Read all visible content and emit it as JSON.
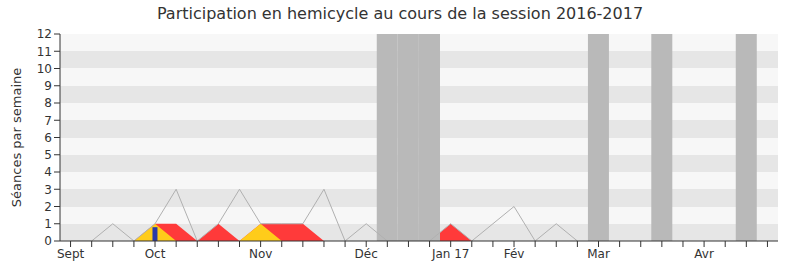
{
  "chart_data": {
    "type": "line",
    "title": "Participation en hemicycle au cours de la session 2016-2017",
    "ylabel": "Séances par semaine",
    "categories": [
      "Sept",
      null,
      null,
      null,
      "Oct",
      null,
      null,
      null,
      null,
      "Nov",
      null,
      null,
      null,
      null,
      "Déc",
      null,
      null,
      null,
      "Jan 17",
      null,
      null,
      "Fév",
      null,
      null,
      null,
      "Mar",
      null,
      null,
      null,
      null,
      "Avr",
      null,
      null,
      null
    ],
    "series": [
      {
        "type": "bar",
        "color": "#b9b9b9",
        "values": [
          null,
          null,
          null,
          null,
          null,
          null,
          null,
          null,
          null,
          null,
          null,
          null,
          null,
          null,
          null,
          12,
          12,
          12,
          null,
          null,
          null,
          null,
          null,
          null,
          null,
          12,
          null,
          null,
          12,
          null,
          null,
          null,
          12,
          null
        ]
      },
      {
        "type": "area",
        "color": "#ff3a3a",
        "values": [
          0,
          0,
          0,
          0,
          1,
          1,
          0,
          1,
          0,
          1,
          1,
          1,
          0,
          0,
          0,
          0,
          0,
          0,
          1,
          0,
          0,
          0,
          0,
          0,
          0,
          null,
          null,
          null,
          null,
          null,
          null,
          null,
          null,
          null
        ]
      },
      {
        "type": "area",
        "color": "#ffcc1a",
        "values": [
          0,
          0,
          0,
          0,
          1,
          0,
          0,
          0,
          0,
          1,
          0,
          0,
          0,
          0,
          0,
          0,
          0,
          0,
          0,
          0,
          0,
          0,
          0,
          0,
          0,
          null,
          null,
          null,
          null,
          null,
          null,
          null,
          null,
          null
        ]
      },
      {
        "type": "bar",
        "color": "#2b3aa8",
        "values": [
          null,
          null,
          null,
          null,
          0.8,
          null,
          null,
          null,
          null,
          null,
          null,
          null,
          null,
          null,
          null,
          null,
          null,
          null,
          null,
          null,
          null,
          null,
          null,
          null,
          null,
          null,
          null,
          null,
          null,
          null,
          null,
          null,
          null,
          null
        ]
      },
      {
        "type": "line",
        "color": "#b0b0b0",
        "values": [
          0,
          0,
          1,
          0,
          1,
          3,
          0,
          1,
          3,
          1,
          1,
          1,
          3,
          0,
          1,
          0,
          0,
          0,
          1,
          0,
          1,
          2,
          0,
          1,
          0,
          null,
          null,
          null,
          null,
          null,
          null,
          null,
          null,
          null
        ]
      }
    ],
    "ylim": [
      0,
      12
    ],
    "yticks": [
      0,
      1,
      2,
      3,
      4,
      5,
      6,
      7,
      8,
      9,
      10,
      11,
      12
    ],
    "grid": true
  }
}
